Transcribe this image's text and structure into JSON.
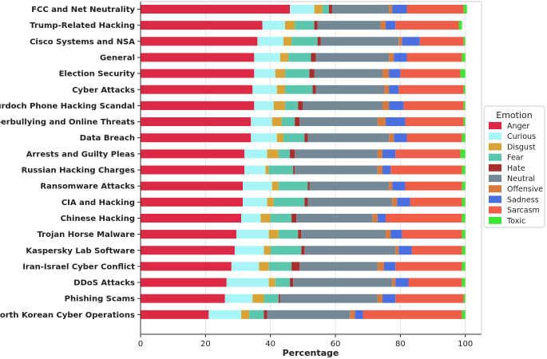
{
  "chart_data": {
    "type": "bar",
    "orientation": "horizontal",
    "stacked": true,
    "xlabel": "Percentage",
    "ylabel": "",
    "xlim": [
      0,
      105
    ],
    "xticks": [
      "0",
      "20",
      "40",
      "60",
      "80",
      "100"
    ],
    "grid": true,
    "legend": {
      "title": "Emotion",
      "placement": "right"
    },
    "categories": [
      "FCC and Net Neutrality",
      "Trump-Related Hacking",
      "Cisco Systems and NSA",
      "General",
      "Election Security",
      "Cyber Attacks",
      "Murdoch Phone Hacking Scandal",
      "Cyberbullying and Online Threats",
      "Data Breach",
      "Arrests and Guilty Pleas",
      "Russian Hacking Charges",
      "Ransomware Attacks",
      "CIA and Hacking",
      "Chinese Hacking",
      "Trojan Horse Malware",
      "Kaspersky Lab Software",
      "Iran-Israel Cyber Conflict",
      "DDoS Attacks",
      "Phishing Scams",
      "North Korean Cyber Operations"
    ],
    "series": [
      {
        "name": "Anger",
        "color": "#dc2a46",
        "values": [
          46,
          37.5,
          36,
          35,
          35,
          34.5,
          35,
          34,
          34,
          32,
          32,
          31.5,
          31.5,
          31,
          29.5,
          29,
          28,
          26.5,
          26,
          21
        ]
      },
      {
        "name": "Curious",
        "color": "#a8f5f7",
        "values": [
          7.5,
          7,
          8,
          8,
          6.5,
          7.5,
          6,
          6.5,
          8,
          7,
          6.5,
          9,
          7.5,
          6,
          10,
          9,
          8.5,
          13,
          8.5,
          10
        ]
      },
      {
        "name": "Disgust",
        "color": "#d8a437",
        "values": [
          2.5,
          3,
          2.5,
          2.5,
          3,
          2.5,
          3.5,
          3,
          2,
          3.5,
          1,
          2,
          2,
          3,
          3,
          2,
          3,
          2,
          3.5,
          2.5
        ]
      },
      {
        "name": "Fear",
        "color": "#5ac7ac",
        "values": [
          2,
          6,
          8,
          7,
          7.5,
          8.5,
          4,
          4,
          6.5,
          3.5,
          7.5,
          9,
          9.5,
          6.5,
          6,
          9.5,
          7,
          4.5,
          4.5,
          4.5
        ]
      },
      {
        "name": "Hate",
        "color": "#aa2d2d",
        "values": [
          1,
          1,
          1,
          1.5,
          1.5,
          1,
          1.5,
          1.5,
          1,
          1.5,
          0.5,
          0.5,
          1,
          1.5,
          1,
          1,
          2.5,
          1,
          0.5,
          1
        ]
      },
      {
        "name": "Neutral",
        "color": "#758896",
        "values": [
          17.5,
          19.5,
          24,
          22.5,
          21,
          21,
          24.5,
          24,
          25,
          25.5,
          25.5,
          24.5,
          26,
          23.5,
          26,
          28,
          24,
          30.5,
          30,
          25.5
        ]
      },
      {
        "name": "Offensive",
        "color": "#d97b3e",
        "values": [
          1,
          1.5,
          1,
          1.5,
          2,
          1.5,
          2,
          2.5,
          1.5,
          1.5,
          1.5,
          1,
          1.5,
          1.5,
          1.5,
          1,
          2,
          1,
          1.5,
          1.5
        ]
      },
      {
        "name": "Sadness",
        "color": "#4a6fe0",
        "values": [
          4.5,
          3,
          5.5,
          4,
          3.5,
          3,
          4.5,
          6,
          4,
          4,
          2.5,
          4,
          4,
          2.5,
          3.5,
          4,
          3.5,
          4,
          4,
          2.5
        ]
      },
      {
        "name": "Sarcasm",
        "color": "#ee5e48",
        "values": [
          17.5,
          19.5,
          13.5,
          17,
          18.5,
          20,
          18.5,
          18,
          17,
          20,
          22,
          17.5,
          16,
          23.5,
          18.5,
          15.5,
          20.5,
          16.5,
          21,
          30.5
        ]
      },
      {
        "name": "Toxic",
        "color": "#40e636",
        "values": [
          1,
          1,
          0.5,
          1,
          1.5,
          0.5,
          0.5,
          0.5,
          1,
          1.5,
          1,
          1,
          1,
          1,
          1,
          1,
          1,
          1,
          0.5,
          1
        ]
      }
    ]
  }
}
